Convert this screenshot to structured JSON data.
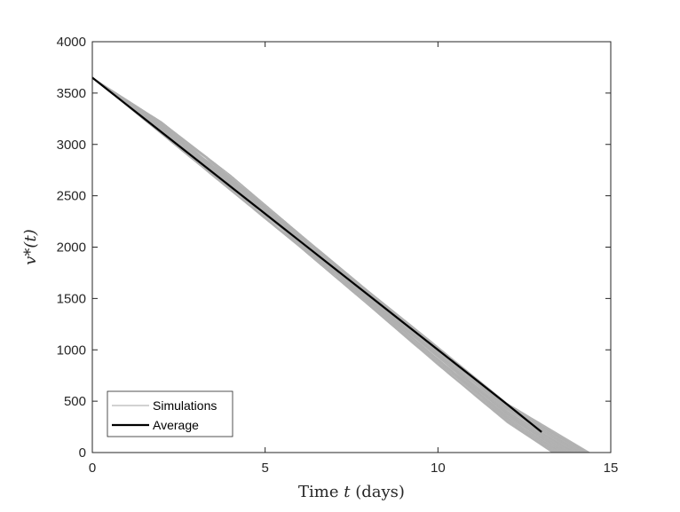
{
  "chart_data": {
    "type": "line",
    "xlabel": "Time t (days)",
    "ylabel": "v*(t)",
    "xlim": [
      0,
      15
    ],
    "ylim": [
      0,
      4000
    ],
    "xticks": [
      0,
      5,
      10,
      15
    ],
    "yticks": [
      0,
      500,
      1000,
      1500,
      2000,
      2500,
      3000,
      3500,
      4000
    ],
    "grid": false,
    "legend_position": "bottom-left",
    "series": [
      {
        "name": "Simulations",
        "color": "#b0b0b0",
        "note": "many overlapping stochastic trajectories",
        "envelope_upper": {
          "x": [
            0,
            2,
            4,
            6,
            8,
            10,
            12,
            13.3
          ],
          "y": [
            3650,
            3100,
            2550,
            2000,
            1430,
            850,
            290,
            0
          ]
        },
        "envelope_lower": {
          "x": [
            0,
            2,
            4,
            6,
            8,
            10,
            12,
            14.4
          ],
          "y": [
            3650,
            3220,
            2700,
            2130,
            1570,
            1030,
            480,
            0
          ]
        }
      },
      {
        "name": "Average",
        "color": "#000000",
        "x": [
          0,
          1,
          2,
          3,
          4,
          5,
          6,
          7,
          8,
          9,
          10,
          11,
          12,
          13
        ],
        "y": [
          3650,
          3385,
          3120,
          2855,
          2590,
          2325,
          2060,
          1795,
          1530,
          1265,
          1000,
          735,
          470,
          200
        ]
      }
    ]
  },
  "axes": {
    "xlabel_prefix": "Time ",
    "xlabel_var": "t",
    "xlabel_suffix": " (days)",
    "ylabel_text": "v*(t)"
  },
  "legend": {
    "simulations_label": "Simulations",
    "average_label": "Average"
  }
}
